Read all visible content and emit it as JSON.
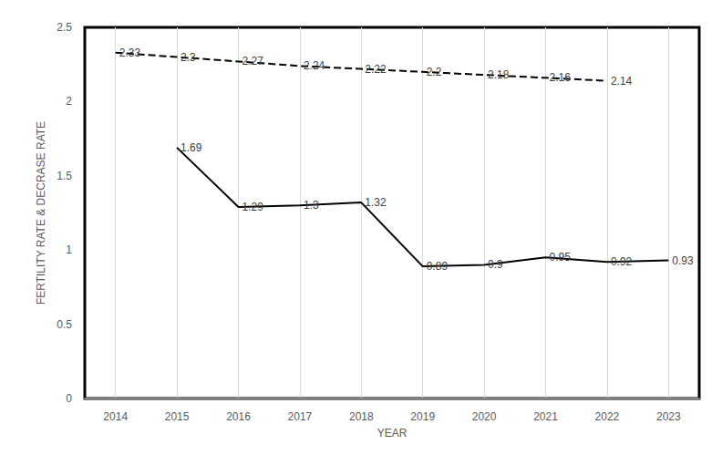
{
  "chart_data": {
    "type": "line",
    "x_label": "YEAR",
    "y_label": "FERTILITY RATE & DECRASE RATE",
    "categories": [
      "2014",
      "2015",
      "2016",
      "2017",
      "2018",
      "2019",
      "2020",
      "2021",
      "2022",
      "2023"
    ],
    "series": [
      {
        "color": "#000000",
        "line_style": "dashed",
        "values": [
          2.33,
          2.3,
          2.27,
          2.24,
          2.22,
          2.2,
          2.18,
          2.16,
          2.14,
          null
        ]
      },
      {
        "color": "#000000",
        "line_style": "solid",
        "values": [
          null,
          1.69,
          1.29,
          1.3,
          1.32,
          0.89,
          0.9,
          0.95,
          0.92,
          0.93
        ]
      }
    ],
    "ylim": [
      0,
      2.5
    ],
    "yticks": [
      0,
      0.5,
      1,
      1.5,
      2,
      2.5
    ],
    "grid": true,
    "data_labels": true
  }
}
